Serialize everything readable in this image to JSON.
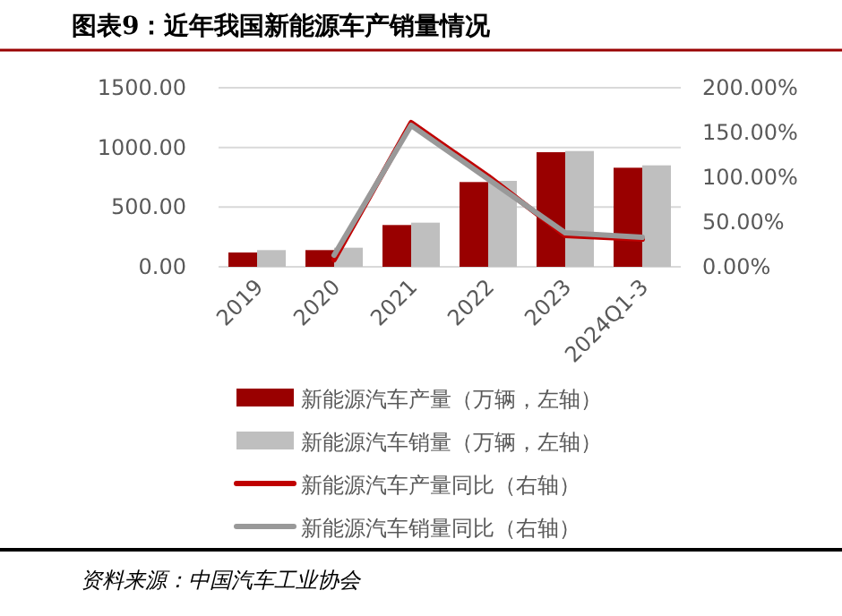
{
  "chart_data": {
    "type": "bar",
    "title": "图表9：近年我国新能源车产销量情况",
    "categories": [
      "2019",
      "2020",
      "2021",
      "2022",
      "2023",
      "2024Q1-3"
    ],
    "series": [
      {
        "name": "新能源汽车产量（万辆，左轴）",
        "color": "#990000",
        "values": [
          120,
          140,
          350,
          710,
          960,
          830
        ]
      },
      {
        "name": "新能源汽车销量（万辆，左轴）",
        "color": "#bfbfbf",
        "values": [
          140,
          160,
          370,
          720,
          970,
          850
        ]
      },
      {
        "name": "新能源汽车产量同比（右轴）",
        "type": "line",
        "axis": "y2",
        "color": "#c00000",
        "values": [
          null,
          8,
          161,
          101,
          35,
          31
        ]
      },
      {
        "name": "新能源汽车销量同比（右轴）",
        "type": "line",
        "axis": "y2",
        "color": "#999999",
        "values": [
          null,
          13,
          158,
          98,
          38,
          33
        ]
      }
    ],
    "ylim": [
      0,
      1500
    ],
    "yticks": [
      {
        "value": 0,
        "label": "0.00"
      },
      {
        "value": 500,
        "label": "500.00"
      },
      {
        "value": 1000,
        "label": "1000.00"
      },
      {
        "value": 1500,
        "label": "1500.00"
      }
    ],
    "y2lim": [
      0,
      200
    ],
    "y2ticks": [
      {
        "value": 0,
        "label": "0.00%"
      },
      {
        "value": 50,
        "label": "50.00%"
      },
      {
        "value": 100,
        "label": "100.00%"
      },
      {
        "value": 150,
        "label": "150.00%"
      },
      {
        "value": 200,
        "label": "200.00%"
      }
    ],
    "grid": "y",
    "legend": "bottom",
    "marker": "none",
    "line_style": "solid",
    "annotations": [
      "资料来源：中国汽车工业协会"
    ]
  }
}
